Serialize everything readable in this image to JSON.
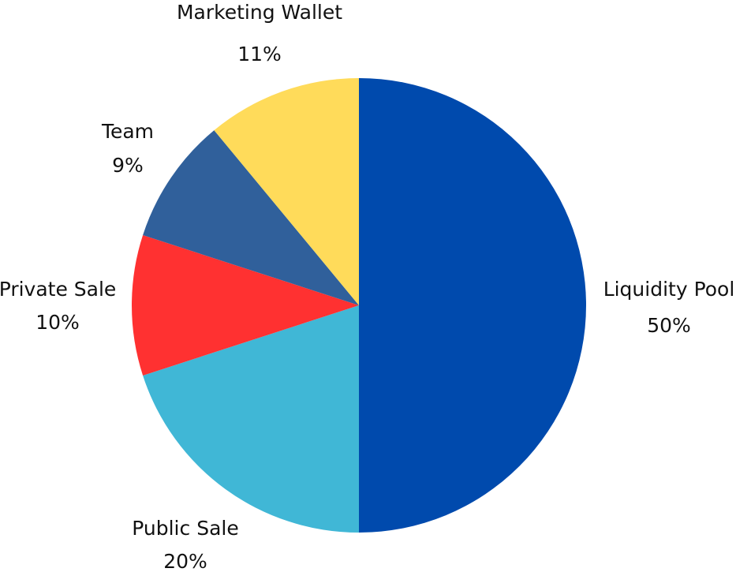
{
  "chart_data": {
    "type": "pie",
    "categories": [
      "Liquidity Pool",
      "Public Sale",
      "Private Sale",
      "Team",
      "Marketing Wallet"
    ],
    "values": [
      50,
      20,
      10,
      9,
      11
    ],
    "value_labels": [
      "50%",
      "20%",
      "10%",
      "9%",
      "11%"
    ],
    "colors": [
      "#004AAD",
      "#40B7D6",
      "#FF3131",
      "#30609B",
      "#FFDB5A"
    ],
    "start": "top",
    "direction": "clockwise",
    "title": ""
  }
}
